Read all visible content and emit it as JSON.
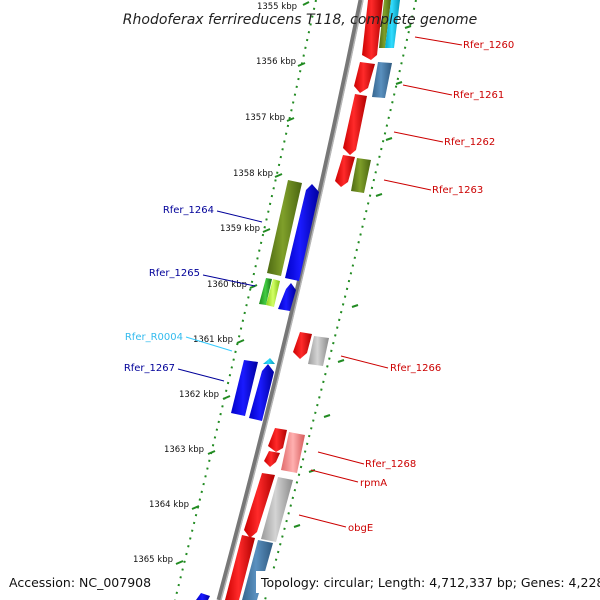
{
  "title": "Rhodoferax ferrireducens T118, complete genome",
  "accession": "Accession: NC_007908",
  "topology": "Topology: circular; Length: 4,712,337 bp; Genes: 4,228",
  "ticks": [
    "1355 kbp",
    "1356 kbp",
    "1357 kbp",
    "1358 kbp",
    "1359 kbp",
    "1360 kbp",
    "1361 kbp",
    "1362 kbp",
    "1363 kbp",
    "1364 kbp",
    "1365 kbp"
  ],
  "gene_labels": [
    "Rfer_1260",
    "Rfer_1261",
    "Rfer_1262",
    "Rfer_1263",
    "Rfer_1264",
    "Rfer_1265",
    "Rfer_R0004",
    "Rfer_1267",
    "Rfer_1266",
    "Rfer_1268",
    "rpmA",
    "obgE"
  ],
  "colors": {
    "forward_gene": "#ff0000",
    "reverse_gene": "#0000ff",
    "pseudo_gene": "#bbbbbb",
    "rna_gene": "#33ccff",
    "olive_feature": "#6b8e23",
    "steelblue_feature": "#4682b4",
    "backbone": "#888888",
    "grid": "#228b22"
  }
}
